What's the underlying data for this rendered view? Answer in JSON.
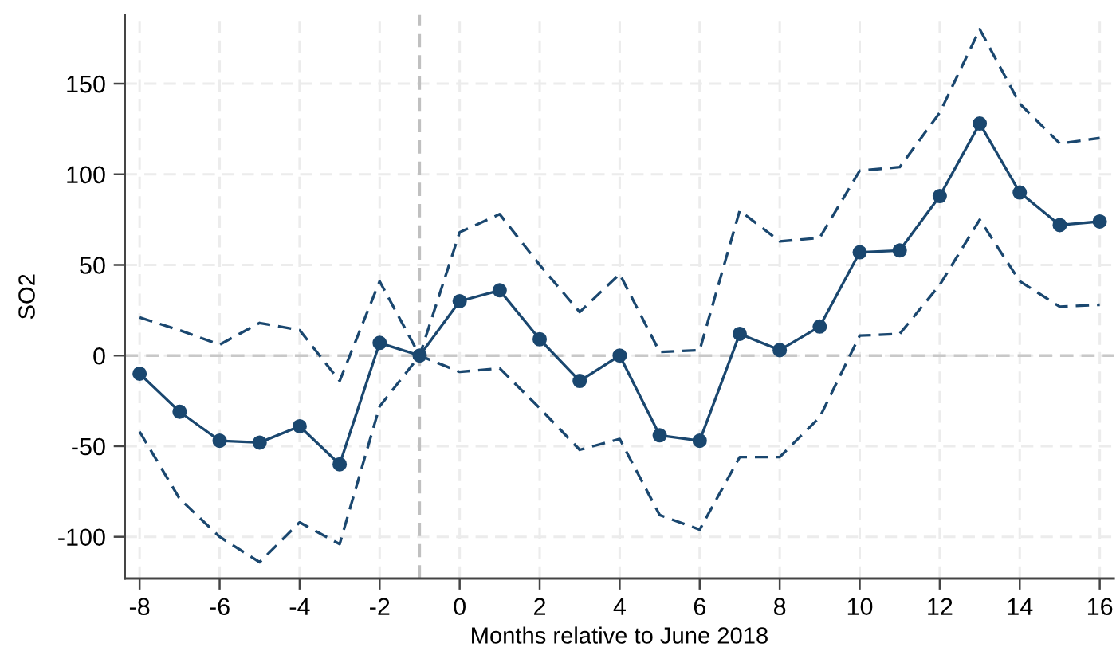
{
  "chart_data": {
    "type": "line",
    "xlabel": "Months relative to June 2018",
    "ylabel": "SO2",
    "x": [
      -8,
      -7,
      -6,
      -5,
      -4,
      -3,
      -2,
      -1,
      0,
      1,
      2,
      3,
      4,
      5,
      6,
      7,
      8,
      9,
      10,
      11,
      12,
      13,
      14,
      15,
      16
    ],
    "series": [
      {
        "color": "#1a476f",
        "line_style": "dashed",
        "marker": "none",
        "values": [
          21,
          14,
          6,
          18,
          14,
          -14,
          41,
          0,
          68,
          78,
          50,
          24,
          45,
          2,
          3,
          80,
          63,
          65,
          102,
          104,
          134,
          180,
          139,
          117,
          120
        ]
      },
      {
        "color": "#1a476f",
        "line_style": "solid",
        "marker": "circle",
        "values": [
          -10,
          -31,
          -47,
          -48,
          -39,
          -60,
          7,
          0,
          30,
          36,
          9,
          -14,
          0,
          -44,
          -47,
          12,
          3,
          16,
          57,
          58,
          88,
          128,
          90,
          72,
          74
        ]
      },
      {
        "color": "#1a476f",
        "line_style": "dashed",
        "marker": "none",
        "values": [
          -42,
          -79,
          -100,
          -114,
          -92,
          -104,
          -28,
          0,
          -9,
          -7,
          -29,
          -52,
          -46,
          -88,
          -96,
          -56,
          -56,
          -34,
          11,
          12,
          39,
          75,
          41,
          27,
          28
        ]
      }
    ],
    "xlim": [
      -8.37,
      16.35
    ],
    "ylim": [
      -123,
      188
    ],
    "xticks": [
      -8,
      -6,
      -4,
      -2,
      0,
      2,
      4,
      6,
      8,
      10,
      12,
      14,
      16
    ],
    "yticks": [
      -100,
      -50,
      0,
      50,
      100,
      150
    ],
    "ref_lines": [
      {
        "axis": "x",
        "value": -1,
        "color": "#c0c0c0",
        "line_style": "dashed"
      },
      {
        "axis": "y",
        "value": 0,
        "color": "#c8c8c8",
        "line_style": "dashed"
      }
    ],
    "grid": true,
    "legend": false
  }
}
